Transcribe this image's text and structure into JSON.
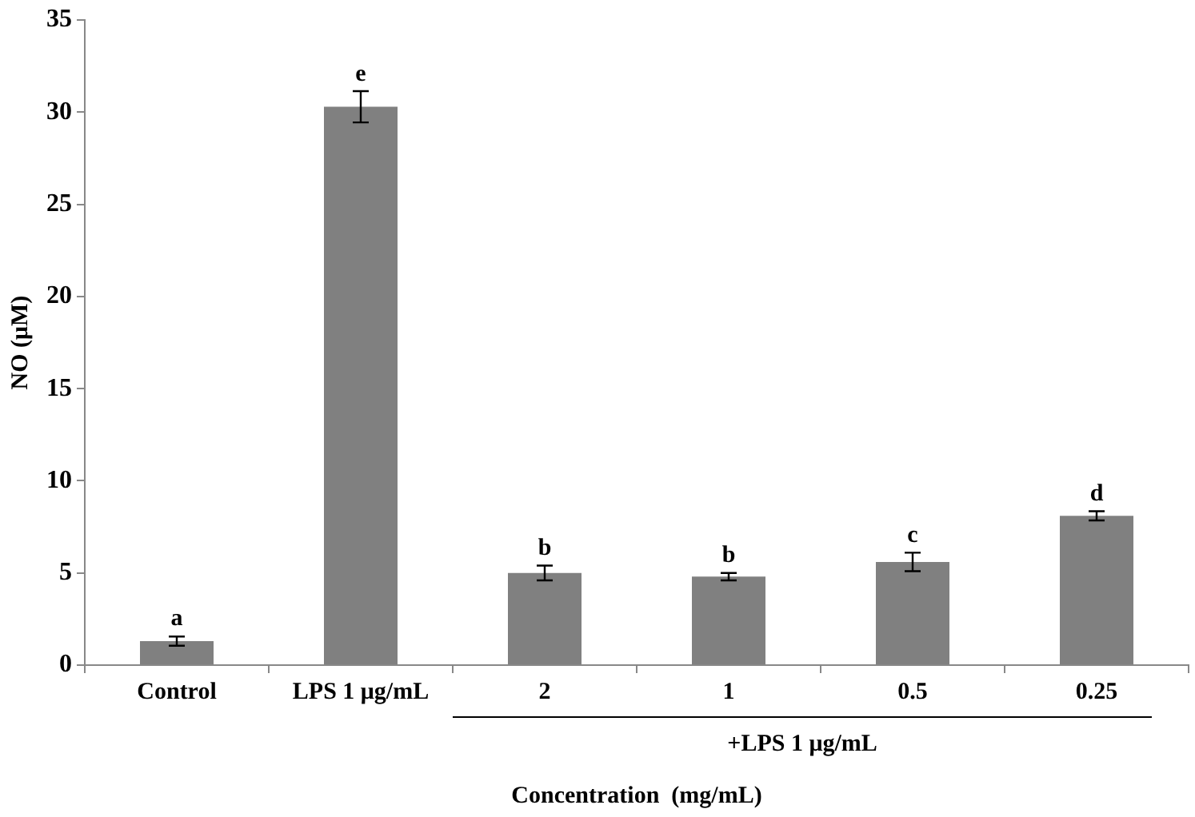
{
  "chart_data": {
    "type": "bar",
    "xlabel": "Concentration  (mg/mL)",
    "ylabel": "NO (μM)",
    "categories": [
      "Control",
      "LPS 1 μg/mL",
      "2",
      "1",
      "0.5",
      "0.25"
    ],
    "values": [
      1.3,
      30.3,
      5.0,
      4.8,
      5.6,
      8.1
    ],
    "errors": [
      0.25,
      0.85,
      0.4,
      0.2,
      0.5,
      0.25
    ],
    "color": "#808080",
    "ylim": [
      0,
      35
    ],
    "yticks": [
      0,
      5,
      10,
      15,
      20,
      25,
      30,
      35
    ],
    "grid": false,
    "legend": false,
    "annotations": [
      {
        "text": "a",
        "x": "Control",
        "y": 1.6
      },
      {
        "text": "e",
        "x": "LPS 1 μg/mL",
        "y": 31.15
      },
      {
        "text": "b",
        "x": "2",
        "y": 5.4
      },
      {
        "text": "b",
        "x": "1",
        "y": 5.0
      },
      {
        "text": "c",
        "x": "0.5",
        "y": 6.1
      },
      {
        "text": "d",
        "x": "0.25",
        "y": 8.35
      },
      "+LPS 1 μg/mL"
    ]
  }
}
